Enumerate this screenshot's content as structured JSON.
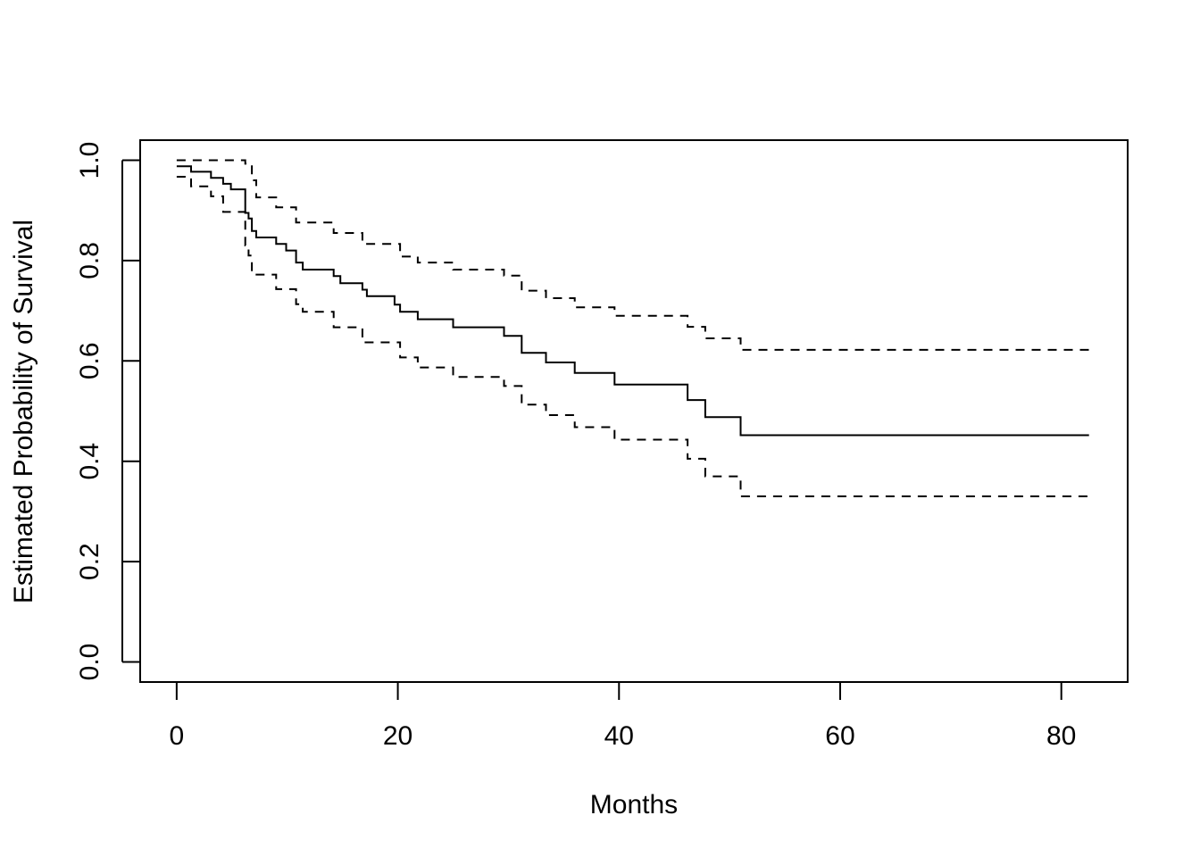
{
  "chart_data": {
    "type": "line",
    "title": "",
    "xlabel": "Months",
    "ylabel": "Estimated Probability of Survival",
    "xlim": [
      -3.3,
      86.0
    ],
    "ylim": [
      -0.04,
      1.04
    ],
    "xticks": [
      "0",
      "20",
      "40",
      "60",
      "80"
    ],
    "yticks": [
      "0.0",
      "0.2",
      "0.4",
      "0.6",
      "0.8",
      "1.0"
    ],
    "grid": false,
    "legend": "none",
    "series": [
      {
        "style": "solid",
        "x": [
          0,
          1.3,
          3.1,
          4.2,
          4.9,
          6.2,
          6.5,
          6.8,
          7.2,
          9.0,
          9.9,
          10.8,
          11.4,
          14.2,
          14.8,
          16.8,
          17.2,
          19.7,
          20.2,
          21.8,
          25.0,
          29.6,
          31.2,
          33.4,
          36.0,
          39.6,
          46.2,
          47.8,
          51.0,
          82.5
        ],
        "y": [
          0.988,
          0.977,
          0.965,
          0.953,
          0.942,
          0.895,
          0.884,
          0.859,
          0.846,
          0.833,
          0.82,
          0.796,
          0.782,
          0.769,
          0.755,
          0.742,
          0.729,
          0.712,
          0.698,
          0.683,
          0.667,
          0.65,
          0.616,
          0.597,
          0.576,
          0.553,
          0.522,
          0.488,
          0.452,
          0.452
        ]
      },
      {
        "style": "dashed",
        "x": [
          0,
          6.2,
          6.8,
          7.2,
          9.0,
          10.8,
          14.2,
          16.8,
          20.2,
          21.8,
          25.0,
          29.6,
          31.2,
          33.4,
          36.0,
          39.6,
          46.2,
          47.8,
          51.0,
          82.5
        ],
        "y": [
          1.0,
          0.993,
          0.96,
          0.926,
          0.906,
          0.876,
          0.855,
          0.833,
          0.808,
          0.796,
          0.782,
          0.77,
          0.74,
          0.725,
          0.707,
          0.69,
          0.668,
          0.645,
          0.622,
          0.622
        ]
      },
      {
        "style": "dashed",
        "x": [
          0,
          1.3,
          3.1,
          4.2,
          6.2,
          6.5,
          6.8,
          9.0,
          10.8,
          11.4,
          14.2,
          16.8,
          20.2,
          21.8,
          25.0,
          29.6,
          31.2,
          33.4,
          36.0,
          39.6,
          46.2,
          47.8,
          51.0,
          82.5
        ],
        "y": [
          0.967,
          0.948,
          0.928,
          0.897,
          0.83,
          0.81,
          0.772,
          0.743,
          0.713,
          0.698,
          0.667,
          0.637,
          0.607,
          0.587,
          0.568,
          0.55,
          0.513,
          0.492,
          0.468,
          0.443,
          0.405,
          0.37,
          0.33,
          0.33
        ]
      }
    ]
  }
}
